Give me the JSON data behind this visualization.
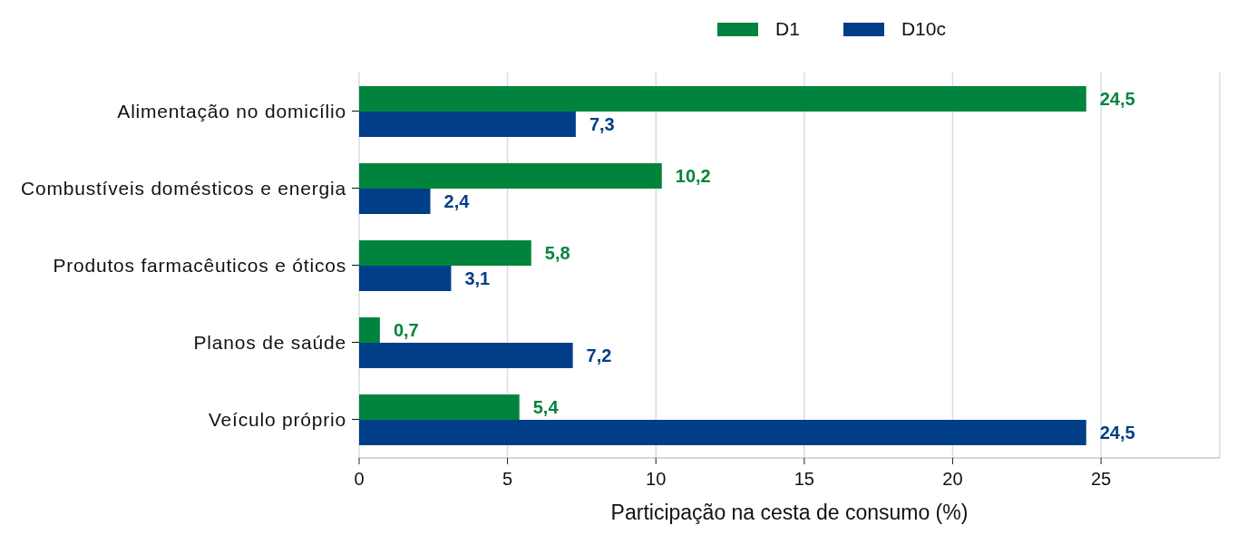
{
  "chart_data": {
    "type": "bar",
    "orientation": "horizontal",
    "categories": [
      "Alimentação no domicílio",
      "Combustíveis domésticos e energia",
      "Produtos farmacêuticos e óticos",
      "Planos de saúde",
      "Veículo próprio"
    ],
    "series": [
      {
        "name": "D1",
        "color": "#00843d",
        "values": [
          24.5,
          10.2,
          5.8,
          0.7,
          5.4
        ],
        "value_labels": [
          "24,5",
          "10,2",
          "5,8",
          "0,7",
          "5,4"
        ]
      },
      {
        "name": "D10c",
        "color": "#003f87",
        "values": [
          7.3,
          2.4,
          3.1,
          7.2,
          24.5
        ],
        "value_labels": [
          "7,3",
          "2,4",
          "3,1",
          "7,2",
          "24,5"
        ]
      }
    ],
    "xlabel": "Participação na cesta de consumo (%)",
    "xlim": [
      0,
      29
    ],
    "xticks": [
      0,
      5,
      10,
      15,
      20,
      25
    ],
    "grid": "x",
    "legend": "top"
  }
}
